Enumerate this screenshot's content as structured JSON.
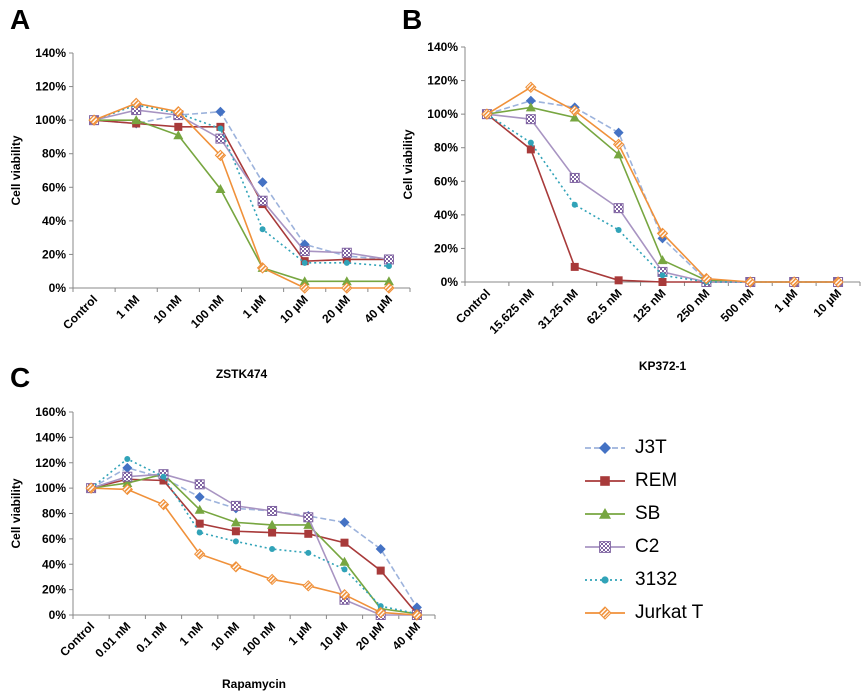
{
  "panels": {
    "a": "A",
    "b": "B",
    "c": "C"
  },
  "series_styles": [
    {
      "name": "J3T",
      "color": "#4472C4",
      "line": "#9db3dc",
      "marker": "diamond",
      "dash": "6,3"
    },
    {
      "name": "REM",
      "color": "#A83A3A",
      "line": "#A83A3A",
      "marker": "square",
      "dash": ""
    },
    {
      "name": "SB",
      "color": "#77A640",
      "line": "#77A640",
      "marker": "triangle",
      "dash": ""
    },
    {
      "name": "C2",
      "color": "#8064A2",
      "line": "#a894c2",
      "marker": "checker",
      "dash": ""
    },
    {
      "name": "3132",
      "color": "#31A3B8",
      "line": "#31A3B8",
      "marker": "circle",
      "dash": "2,3"
    },
    {
      "name": "Jurkat T",
      "color": "#F0913A",
      "line": "#F0913A",
      "marker": "hatch",
      "dash": ""
    }
  ],
  "chart_data": [
    {
      "type": "line",
      "panel": "A",
      "xlabel": "ZSTK474",
      "ylabel": "Cell viability",
      "ylim": [
        0,
        140
      ],
      "yticks": [
        "0%",
        "20%",
        "40%",
        "60%",
        "80%",
        "100%",
        "120%",
        "140%"
      ],
      "categories": [
        "Control",
        "1 nM",
        "10 nM",
        "100 nM",
        "1 µM",
        "10 µM",
        "20 µM",
        "40 µM"
      ],
      "series": [
        {
          "name": "J3T",
          "values": [
            100,
            98,
            103,
            105,
            63,
            26,
            19,
            17
          ]
        },
        {
          "name": "REM",
          "values": [
            100,
            98,
            96,
            96,
            50,
            16,
            17,
            17
          ]
        },
        {
          "name": "SB",
          "values": [
            100,
            100,
            91,
            59,
            12,
            4,
            4,
            4
          ]
        },
        {
          "name": "C2",
          "values": [
            100,
            106,
            103,
            89,
            52,
            22,
            21,
            17
          ]
        },
        {
          "name": "3132",
          "values": [
            100,
            109,
            104,
            95,
            35,
            15,
            15,
            13
          ]
        },
        {
          "name": "Jurkat T",
          "values": [
            100,
            110,
            105,
            79,
            12,
            0,
            0,
            0
          ]
        }
      ]
    },
    {
      "type": "line",
      "panel": "B",
      "xlabel": "KP372-1",
      "ylabel": "Cell viability",
      "ylim": [
        0,
        140
      ],
      "yticks": [
        "0%",
        "20%",
        "40%",
        "60%",
        "80%",
        "100%",
        "120%",
        "140%"
      ],
      "categories": [
        "Control",
        "15.625 nM",
        "31.25 nM",
        "62.5 nM",
        "125 nM",
        "250 nM",
        "500 nM",
        "1 µM",
        "10 µM"
      ],
      "series": [
        {
          "name": "J3T",
          "values": [
            100,
            108,
            104,
            89,
            26,
            1,
            0,
            0,
            0
          ]
        },
        {
          "name": "REM",
          "values": [
            100,
            79,
            9,
            1,
            0,
            0,
            0,
            0,
            0
          ]
        },
        {
          "name": "SB",
          "values": [
            100,
            104,
            98,
            76,
            13,
            1,
            0,
            0,
            0
          ]
        },
        {
          "name": "C2",
          "values": [
            100,
            97,
            62,
            44,
            6,
            0,
            0,
            0,
            0
          ]
        },
        {
          "name": "3132",
          "values": [
            100,
            83,
            46,
            31,
            4,
            0,
            0,
            0,
            0
          ]
        },
        {
          "name": "Jurkat T",
          "values": [
            100,
            116,
            102,
            82,
            29,
            2,
            0,
            0,
            0
          ]
        }
      ]
    },
    {
      "type": "line",
      "panel": "C",
      "xlabel": "Rapamycin",
      "ylabel": "Cell viability",
      "ylim": [
        0,
        160
      ],
      "yticks": [
        "0%",
        "20%",
        "40%",
        "60%",
        "80%",
        "100%",
        "120%",
        "140%",
        "160%"
      ],
      "categories": [
        "Control",
        "0.01 nM",
        "0.1 nM",
        "1 nM",
        "10 nM",
        "100 nM",
        "1 µM",
        "10 µM",
        "20 µM",
        "40 µM"
      ],
      "series": [
        {
          "name": "J3T",
          "values": [
            100,
            116,
            108,
            93,
            84,
            82,
            78,
            73,
            52,
            6
          ]
        },
        {
          "name": "REM",
          "values": [
            100,
            107,
            106,
            72,
            66,
            65,
            64,
            57,
            35,
            1
          ]
        },
        {
          "name": "SB",
          "values": [
            100,
            104,
            111,
            83,
            73,
            71,
            71,
            42,
            5,
            1
          ]
        },
        {
          "name": "C2",
          "values": [
            100,
            109,
            111,
            103,
            86,
            82,
            77,
            12,
            0,
            0
          ]
        },
        {
          "name": "3132",
          "values": [
            100,
            123,
            109,
            65,
            58,
            52,
            49,
            36,
            7,
            1
          ]
        },
        {
          "name": "Jurkat T",
          "values": [
            100,
            99,
            87,
            48,
            38,
            28,
            23,
            16,
            2,
            0
          ]
        }
      ]
    }
  ]
}
